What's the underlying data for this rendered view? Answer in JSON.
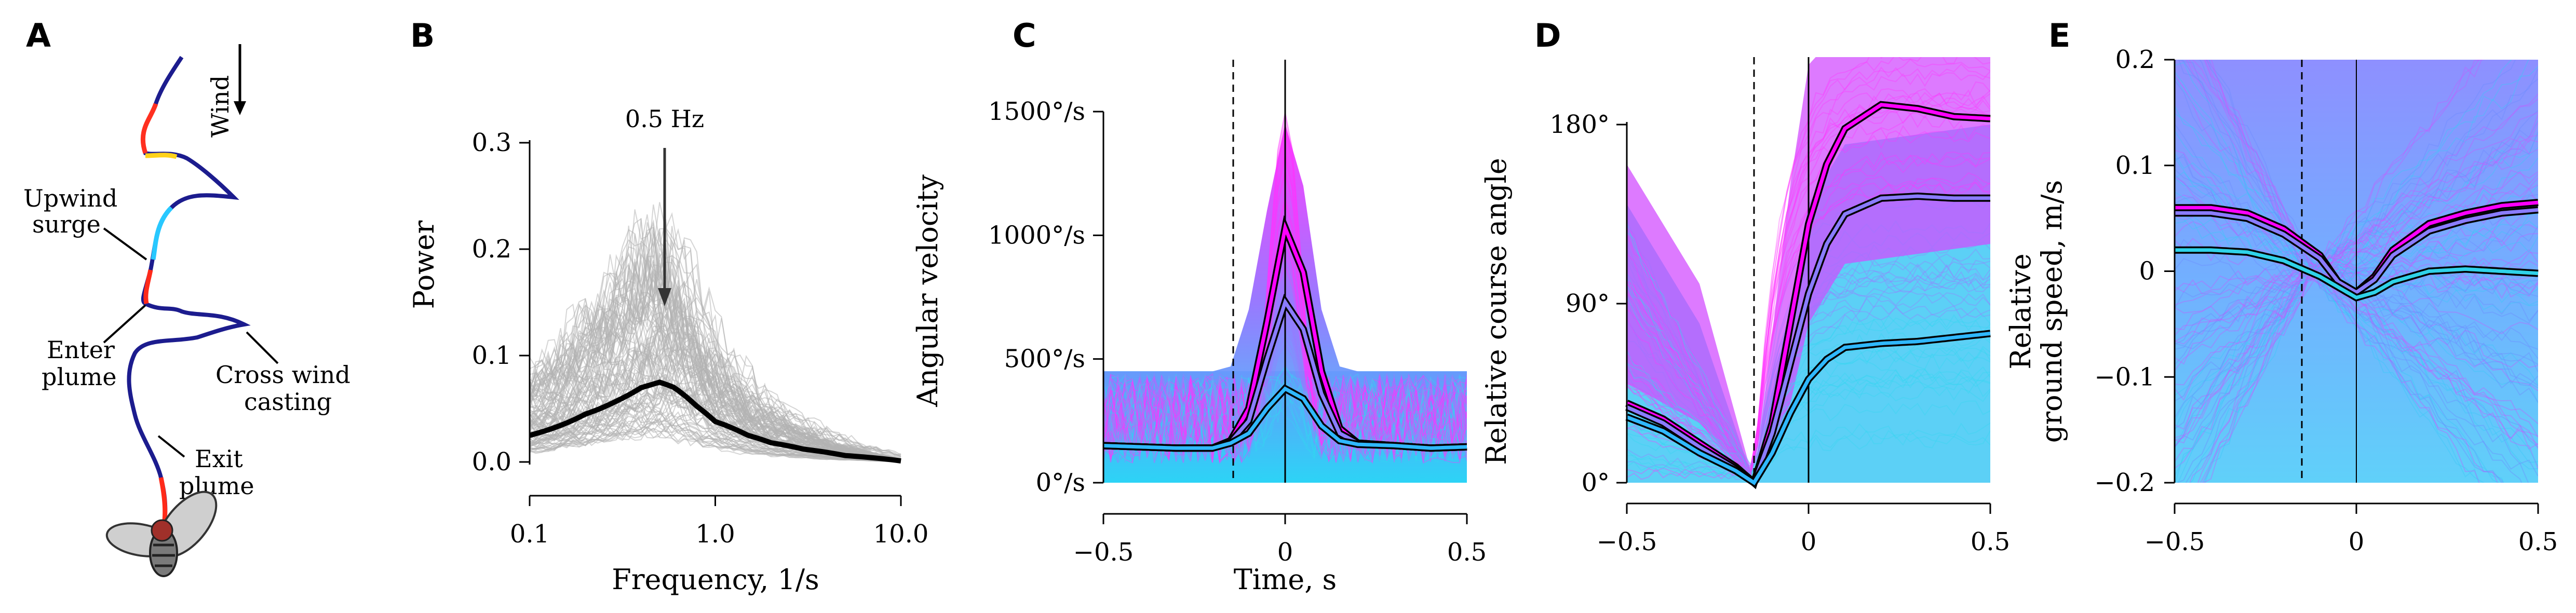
{
  "panels": {
    "A": {
      "label": "A",
      "annotations": {
        "wind": "Wind",
        "upwind1": "Upwind",
        "upwind2": "surge",
        "enter1": "Enter",
        "enter2": "plume",
        "cross1": "Cross wind",
        "cross2": "casting",
        "exit1": "Exit",
        "exit2": "plume"
      }
    },
    "B": {
      "label": "B"
    },
    "C": {
      "label": "C"
    },
    "D": {
      "label": "D"
    },
    "E": {
      "label": "E"
    }
  },
  "colors": {
    "individual_gray": "#b3b3b3",
    "mean_black": "#000000",
    "magenta": "#ff00ff",
    "cyan": "#00d8f0",
    "blend": "#6a8cff"
  },
  "chart_data": [
    {
      "panel": "B",
      "type": "line",
      "title": "",
      "xlabel": "Frequency, 1/s",
      "ylabel": "Power",
      "xscale": "log",
      "xlim": [
        0.1,
        10.0
      ],
      "ylim": [
        0.0,
        0.3
      ],
      "xticks": [
        "0.1",
        "1.0",
        "10.0"
      ],
      "yticks": [
        "0.0",
        "0.1",
        "0.2",
        "0.3"
      ],
      "annotation": "0.5 Hz",
      "annotation_x": 0.5,
      "series": [
        {
          "x": [
            0.1,
            0.15,
            0.2,
            0.3,
            0.4,
            0.5,
            0.6,
            0.8,
            1.0,
            1.5,
            2.0,
            3.0,
            5.0,
            10.0
          ],
          "values": [
            0.025,
            0.035,
            0.045,
            0.058,
            0.07,
            0.075,
            0.07,
            0.052,
            0.038,
            0.025,
            0.018,
            0.012,
            0.006,
            0.001
          ]
        }
      ]
    },
    {
      "panel": "C",
      "type": "line",
      "title": "",
      "xlabel": "Time, s",
      "ylabel": "Angular velocity",
      "xlim": [
        -0.5,
        0.5
      ],
      "ylim": [
        0,
        1500
      ],
      "xticks": [
        "−0.5",
        "0",
        "0.5"
      ],
      "yticks": [
        "0°/s",
        "500°/s",
        "1000°/s",
        "1500°/s"
      ],
      "vlines": {
        "dashed": -0.15,
        "solid": 0
      },
      "series": [
        {
          "x": [
            -0.5,
            -0.4,
            -0.3,
            -0.2,
            -0.15,
            -0.1,
            -0.05,
            0,
            0.05,
            0.1,
            0.15,
            0.2,
            0.3,
            0.4,
            0.5
          ],
          "values": [
            150,
            145,
            140,
            140,
            170,
            300,
            650,
            1030,
            850,
            450,
            220,
            160,
            150,
            140,
            145
          ]
        },
        {
          "x": [
            -0.5,
            -0.4,
            -0.3,
            -0.2,
            -0.15,
            -0.1,
            -0.05,
            0,
            0.05,
            0.1,
            0.15,
            0.2,
            0.3,
            0.4,
            0.5
          ],
          "values": [
            150,
            145,
            140,
            140,
            165,
            250,
            500,
            730,
            620,
            360,
            200,
            160,
            150,
            140,
            145
          ]
        },
        {
          "x": [
            -0.5,
            -0.4,
            -0.3,
            -0.2,
            -0.15,
            -0.1,
            -0.05,
            0,
            0.05,
            0.1,
            0.15,
            0.2,
            0.3,
            0.4,
            0.5
          ],
          "values": [
            150,
            145,
            140,
            140,
            160,
            200,
            300,
            380,
            340,
            230,
            170,
            155,
            150,
            140,
            145
          ]
        }
      ]
    },
    {
      "panel": "D",
      "type": "line",
      "title": "",
      "xlabel": "",
      "ylabel": "Relative course angle",
      "xlim": [
        -0.5,
        0.5
      ],
      "ylim": [
        0,
        200
      ],
      "xticks": [
        "−0.5",
        "0",
        "0.5"
      ],
      "yticks": [
        "0°",
        "90°",
        "180°"
      ],
      "vlines": {
        "dashed": -0.15,
        "solid": 0
      },
      "series": [
        {
          "x": [
            -0.5,
            -0.4,
            -0.3,
            -0.2,
            -0.15,
            -0.1,
            -0.05,
            0,
            0.05,
            0.1,
            0.2,
            0.3,
            0.4,
            0.5
          ],
          "values": [
            40,
            32,
            20,
            8,
            0,
            30,
            80,
            130,
            160,
            178,
            190,
            188,
            184,
            183
          ]
        },
        {
          "x": [
            -0.5,
            -0.4,
            -0.3,
            -0.2,
            -0.15,
            -0.1,
            -0.05,
            0,
            0.05,
            0.1,
            0.2,
            0.3,
            0.4,
            0.5
          ],
          "values": [
            38,
            30,
            18,
            7,
            0,
            25,
            60,
            95,
            120,
            135,
            143,
            144,
            143,
            143
          ]
        },
        {
          "x": [
            -0.5,
            -0.4,
            -0.3,
            -0.2,
            -0.15,
            -0.1,
            -0.05,
            0,
            0.05,
            0.1,
            0.2,
            0.3,
            0.4,
            0.5
          ],
          "values": [
            33,
            26,
            15,
            6,
            0,
            15,
            35,
            52,
            62,
            68,
            70,
            71,
            73,
            75
          ]
        }
      ]
    },
    {
      "panel": "E",
      "type": "line",
      "title": "",
      "xlabel": "",
      "ylabel": "Relative ground speed, m/s",
      "ylabel_lines": [
        "Relative",
        "ground speed, m/s"
      ],
      "xlim": [
        -0.5,
        0.5
      ],
      "ylim": [
        -0.2,
        0.2
      ],
      "xticks": [
        "−0.5",
        "0",
        "0.5"
      ],
      "yticks": [
        "−0.2",
        "−0.1",
        "0",
        "0.1",
        "0.2"
      ],
      "vlines": {
        "dashed": -0.15,
        "solid": 0
      },
      "series": [
        {
          "x": [
            -0.5,
            -0.4,
            -0.3,
            -0.2,
            -0.1,
            -0.05,
            0,
            0.05,
            0.1,
            0.2,
            0.3,
            0.4,
            0.5
          ],
          "values": [
            0.06,
            0.06,
            0.055,
            0.04,
            0.015,
            -0.01,
            -0.02,
            -0.005,
            0.02,
            0.045,
            0.055,
            0.062,
            0.065
          ]
        },
        {
          "x": [
            -0.5,
            -0.4,
            -0.3,
            -0.2,
            -0.1,
            -0.05,
            0,
            0.05,
            0.1,
            0.2,
            0.3,
            0.4,
            0.5
          ],
          "values": [
            0.055,
            0.055,
            0.05,
            0.035,
            0.012,
            -0.01,
            -0.02,
            -0.008,
            0.015,
            0.038,
            0.048,
            0.055,
            0.058
          ]
        },
        {
          "x": [
            -0.5,
            -0.4,
            -0.3,
            -0.2,
            -0.1,
            -0.05,
            0,
            0.05,
            0.1,
            0.2,
            0.3,
            0.4,
            0.5
          ],
          "values": [
            0.02,
            0.02,
            0.018,
            0.01,
            -0.005,
            -0.015,
            -0.025,
            -0.02,
            -0.01,
            0.0,
            0.002,
            0.0,
            -0.002
          ]
        }
      ]
    }
  ]
}
